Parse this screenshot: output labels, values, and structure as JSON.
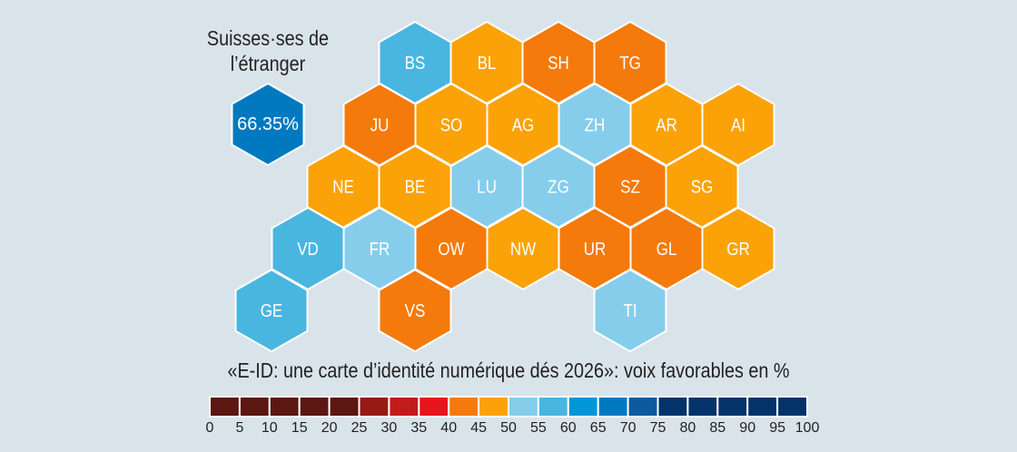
{
  "abroad": {
    "title_line1": "Suisses·ses de",
    "title_line2": "l’étranger",
    "value_label": "66.35%",
    "value": 66.35,
    "color": "#0079c1"
  },
  "legend": {
    "title": "«E-ID: une carte d’identité numérique dés 2026»: voix favorables en %",
    "ticks": [
      "0",
      "5",
      "10",
      "15",
      "20",
      "25",
      "30",
      "35",
      "40",
      "45",
      "50",
      "55",
      "60",
      "65",
      "70",
      "75",
      "80",
      "85",
      "90",
      "95",
      "100"
    ],
    "bins": [
      {
        "from": 0,
        "to": 5,
        "color": "#5c1710"
      },
      {
        "from": 5,
        "to": 10,
        "color": "#5c1710"
      },
      {
        "from": 10,
        "to": 15,
        "color": "#5c1710"
      },
      {
        "from": 15,
        "to": 20,
        "color": "#5c1710"
      },
      {
        "from": 20,
        "to": 25,
        "color": "#5c1710"
      },
      {
        "from": 25,
        "to": 30,
        "color": "#951b14"
      },
      {
        "from": 30,
        "to": 35,
        "color": "#c21b1b"
      },
      {
        "from": 35,
        "to": 40,
        "color": "#e8141c"
      },
      {
        "from": 40,
        "to": 45,
        "color": "#f47a0b"
      },
      {
        "from": 45,
        "to": 50,
        "color": "#fba209"
      },
      {
        "from": 50,
        "to": 55,
        "color": "#86cdec"
      },
      {
        "from": 55,
        "to": 60,
        "color": "#49b6e0"
      },
      {
        "from": 60,
        "to": 65,
        "color": "#0096d8"
      },
      {
        "from": 65,
        "to": 70,
        "color": "#0079c1"
      },
      {
        "from": 70,
        "to": 75,
        "color": "#0d5aa0"
      },
      {
        "from": 75,
        "to": 80,
        "color": "#03336a"
      },
      {
        "from": 80,
        "to": 85,
        "color": "#03336a"
      },
      {
        "from": 85,
        "to": 90,
        "color": "#03336a"
      },
      {
        "from": 90,
        "to": 95,
        "color": "#03336a"
      },
      {
        "from": 95,
        "to": 100,
        "color": "#03336a"
      }
    ]
  },
  "cantons": [
    {
      "code": "BS",
      "row": 0,
      "col": 2,
      "range": "55-60",
      "color": "#49b6e0"
    },
    {
      "code": "BL",
      "row": 0,
      "col": 3,
      "range": "45-50",
      "color": "#fba209"
    },
    {
      "code": "SH",
      "row": 0,
      "col": 4,
      "range": "40-45",
      "color": "#f47a0b"
    },
    {
      "code": "TG",
      "row": 0,
      "col": 5,
      "range": "40-45",
      "color": "#f47a0b"
    },
    {
      "code": "JU",
      "row": 1,
      "col": 1,
      "range": "40-45",
      "color": "#f47a0b"
    },
    {
      "code": "SO",
      "row": 1,
      "col": 2,
      "range": "45-50",
      "color": "#fba209"
    },
    {
      "code": "AG",
      "row": 1,
      "col": 3,
      "range": "45-50",
      "color": "#fba209"
    },
    {
      "code": "ZH",
      "row": 1,
      "col": 4,
      "range": "50-55",
      "color": "#86cdec"
    },
    {
      "code": "AR",
      "row": 1,
      "col": 5,
      "range": "45-50",
      "color": "#fba209"
    },
    {
      "code": "AI",
      "row": 1,
      "col": 6,
      "range": "45-50",
      "color": "#fba209"
    },
    {
      "code": "NE",
      "row": 2,
      "col": 1,
      "range": "45-50",
      "color": "#fba209"
    },
    {
      "code": "BE",
      "row": 2,
      "col": 2,
      "range": "45-50",
      "color": "#fba209"
    },
    {
      "code": "LU",
      "row": 2,
      "col": 3,
      "range": "50-55",
      "color": "#86cdec"
    },
    {
      "code": "ZG",
      "row": 2,
      "col": 4,
      "range": "50-55",
      "color": "#86cdec"
    },
    {
      "code": "SZ",
      "row": 2,
      "col": 5,
      "range": "40-45",
      "color": "#f47a0b"
    },
    {
      "code": "SG",
      "row": 2,
      "col": 6,
      "range": "45-50",
      "color": "#fba209"
    },
    {
      "code": "VD",
      "row": 3,
      "col": 0,
      "range": "55-60",
      "color": "#49b6e0"
    },
    {
      "code": "FR",
      "row": 3,
      "col": 1,
      "range": "50-55",
      "color": "#86cdec"
    },
    {
      "code": "OW",
      "row": 3,
      "col": 2,
      "range": "40-45",
      "color": "#f47a0b"
    },
    {
      "code": "NW",
      "row": 3,
      "col": 3,
      "range": "45-50",
      "color": "#fba209"
    },
    {
      "code": "UR",
      "row": 3,
      "col": 4,
      "range": "40-45",
      "color": "#f47a0b"
    },
    {
      "code": "GL",
      "row": 3,
      "col": 5,
      "range": "40-45",
      "color": "#f47a0b"
    },
    {
      "code": "GR",
      "row": 3,
      "col": 6,
      "range": "45-50",
      "color": "#fba209"
    },
    {
      "code": "GE",
      "row": 4,
      "col": 0,
      "range": "55-60",
      "color": "#49b6e0"
    },
    {
      "code": "VS",
      "row": 4,
      "col": 2,
      "range": "40-45",
      "color": "#f47a0b"
    },
    {
      "code": "TI",
      "row": 4,
      "col": 5,
      "range": "50-55",
      "color": "#86cdec"
    }
  ]
}
